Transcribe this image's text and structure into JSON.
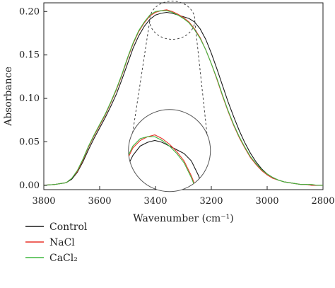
{
  "chart_data": {
    "type": "line",
    "xlabel": "Wavenumber (cm⁻¹)",
    "ylabel": "Absorbance",
    "xlim": [
      3800,
      2800
    ],
    "ylim": [
      -0.005,
      0.21
    ],
    "x_reversed": true,
    "grid": false,
    "legend_position": "below-left",
    "x_ticks": [
      3800,
      3600,
      3400,
      3200,
      3000,
      2800
    ],
    "y_ticks": [
      0.0,
      0.05,
      0.1,
      0.15,
      0.2
    ],
    "x_tick_labels": [
      "3800",
      "3600",
      "3400",
      "3200",
      "3000",
      "2800"
    ],
    "y_tick_labels": [
      "0.00",
      "0.05",
      "0.10",
      "0.15",
      "0.20"
    ],
    "x": [
      3800,
      3760,
      3720,
      3700,
      3680,
      3660,
      3640,
      3620,
      3600,
      3580,
      3560,
      3540,
      3520,
      3500,
      3480,
      3460,
      3440,
      3420,
      3400,
      3380,
      3360,
      3340,
      3320,
      3300,
      3280,
      3260,
      3240,
      3220,
      3200,
      3180,
      3160,
      3140,
      3120,
      3100,
      3080,
      3060,
      3040,
      3020,
      3000,
      2980,
      2960,
      2940,
      2920,
      2900,
      2880,
      2860,
      2840,
      2820,
      2800
    ],
    "series": [
      {
        "name": "Control",
        "color": "#1a1a1a",
        "values": [
          0.0,
          0.001,
          0.003,
          0.007,
          0.015,
          0.027,
          0.041,
          0.054,
          0.066,
          0.078,
          0.091,
          0.105,
          0.122,
          0.14,
          0.158,
          0.172,
          0.183,
          0.191,
          0.196,
          0.198,
          0.199,
          0.198,
          0.196,
          0.194,
          0.192,
          0.188,
          0.18,
          0.168,
          0.152,
          0.134,
          0.115,
          0.096,
          0.079,
          0.063,
          0.049,
          0.037,
          0.027,
          0.019,
          0.013,
          0.009,
          0.006,
          0.004,
          0.003,
          0.002,
          0.001,
          0.001,
          0.0,
          0.0,
          0.0
        ]
      },
      {
        "name": "NaCl",
        "color": "#e8332a",
        "values": [
          0.0,
          0.001,
          0.003,
          0.008,
          0.016,
          0.029,
          0.044,
          0.057,
          0.069,
          0.081,
          0.095,
          0.11,
          0.127,
          0.146,
          0.163,
          0.177,
          0.187,
          0.195,
          0.199,
          0.201,
          0.202,
          0.2,
          0.197,
          0.193,
          0.188,
          0.18,
          0.17,
          0.156,
          0.14,
          0.122,
          0.103,
          0.085,
          0.069,
          0.055,
          0.043,
          0.032,
          0.024,
          0.017,
          0.012,
          0.008,
          0.006,
          0.004,
          0.003,
          0.002,
          0.001,
          0.001,
          0.0,
          0.0,
          0.0
        ]
      },
      {
        "name": "CaCl₂",
        "color": "#3fb73f",
        "values": [
          0.0,
          0.001,
          0.003,
          0.008,
          0.017,
          0.03,
          0.045,
          0.058,
          0.07,
          0.082,
          0.096,
          0.111,
          0.128,
          0.147,
          0.164,
          0.178,
          0.188,
          0.196,
          0.2,
          0.201,
          0.201,
          0.199,
          0.196,
          0.192,
          0.187,
          0.179,
          0.169,
          0.156,
          0.14,
          0.123,
          0.104,
          0.086,
          0.07,
          0.056,
          0.044,
          0.033,
          0.025,
          0.018,
          0.013,
          0.009,
          0.006,
          0.004,
          0.003,
          0.002,
          0.001,
          0.001,
          0.001,
          0.0,
          0.0
        ]
      }
    ],
    "annotations": [
      {
        "type": "dashed-ellipse",
        "note": "peak region highlight"
      },
      {
        "type": "inset-circle",
        "note": "magnified view of peak region"
      }
    ]
  }
}
